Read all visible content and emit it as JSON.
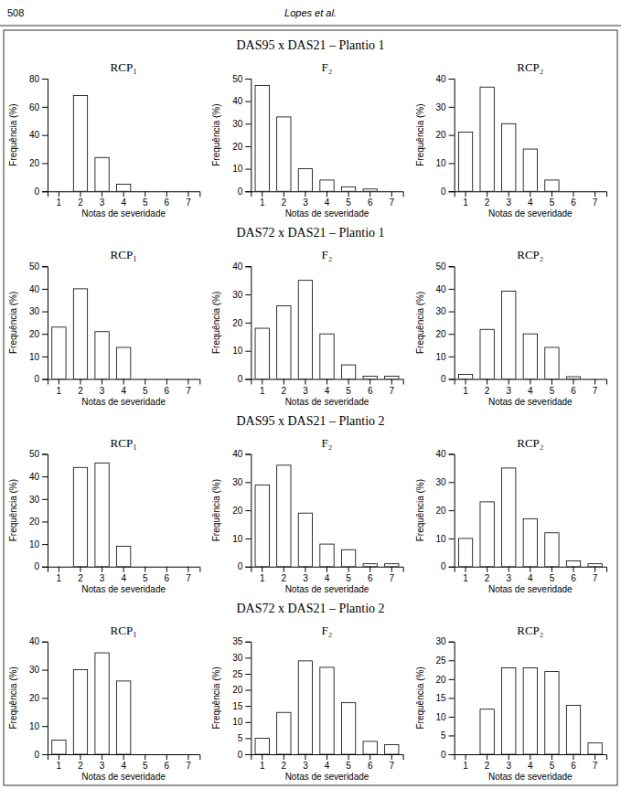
{
  "chart_data": [
    {
      "type": "bar",
      "title": "DAS95 x DAS21 – Plantio 1",
      "subtitle": "RCP₁",
      "annotations": [
        "508",
        "Lopes  et al."
      ],
      "xlabel": "Notas de severidade",
      "ylabel": "Frequência (%)",
      "categories": [
        1,
        2,
        3,
        4,
        5,
        6,
        7
      ],
      "values": [
        0,
        68,
        24,
        5,
        0,
        0,
        0
      ],
      "ylim": [
        0,
        80
      ],
      "yticks": [
        0,
        20,
        40,
        60,
        80
      ],
      "color": "white"
    },
    {
      "type": "bar",
      "subtitle": "F₂",
      "xlabel": "Notas de severidade",
      "ylabel": "Frequência (%)",
      "categories": [
        1,
        2,
        3,
        4,
        5,
        6,
        7
      ],
      "values": [
        47,
        33,
        10,
        5,
        2,
        1,
        0
      ],
      "ylim": [
        0,
        50
      ],
      "yticks": [
        0,
        10,
        20,
        30,
        40,
        50
      ],
      "color": "white"
    },
    {
      "type": "bar",
      "subtitle": "RCP₂",
      "xlabel": "Notas de severidade",
      "ylabel": "Frequência (%)",
      "categories": [
        1,
        2,
        3,
        4,
        5,
        6,
        7
      ],
      "values": [
        21,
        37,
        24,
        15,
        4,
        0,
        0
      ],
      "ylim": [
        0,
        40
      ],
      "yticks": [
        0,
        10,
        20,
        30,
        40
      ],
      "color": "white"
    },
    {
      "type": "bar",
      "title": "DAS72 x DAS21 – Plantio 1",
      "subtitle": "RCP₁",
      "xlabel": "Notas de severidade",
      "ylabel": "Frequência (%)",
      "categories": [
        1,
        2,
        3,
        4,
        5,
        6,
        7
      ],
      "values": [
        23,
        40,
        21,
        14,
        0,
        0,
        0
      ],
      "ylim": [
        0,
        50
      ],
      "yticks": [
        0,
        10,
        20,
        30,
        40,
        50
      ],
      "color": "white"
    },
    {
      "type": "bar",
      "subtitle": "F₂",
      "xlabel": "Notas de severidade",
      "ylabel": "Frequência (%)",
      "categories": [
        1,
        2,
        3,
        4,
        5,
        6,
        7
      ],
      "values": [
        18,
        26,
        35,
        16,
        5,
        1,
        1
      ],
      "ylim": [
        0,
        40
      ],
      "yticks": [
        0,
        10,
        20,
        30,
        40
      ],
      "color": "white"
    },
    {
      "type": "bar",
      "subtitle": "RCP₂",
      "xlabel": "Notas de severidade",
      "ylabel": "Frequência (%)",
      "categories": [
        1,
        2,
        3,
        4,
        5,
        6,
        7
      ],
      "values": [
        2,
        22,
        39,
        20,
        14,
        1,
        0
      ],
      "ylim": [
        0,
        50
      ],
      "yticks": [
        0,
        10,
        20,
        30,
        40,
        50
      ],
      "color": "white"
    },
    {
      "type": "bar",
      "title": "DAS95 x DAS21 – Plantio 2",
      "subtitle": "RCP₁",
      "xlabel": "Notas de severidade",
      "ylabel": "Frequência (%)",
      "categories": [
        1,
        2,
        3,
        4,
        5,
        6,
        7
      ],
      "values": [
        0,
        44,
        46,
        9,
        0,
        0,
        0
      ],
      "ylim": [
        0,
        50
      ],
      "yticks": [
        0,
        10,
        20,
        30,
        40,
        50
      ],
      "color": "white"
    },
    {
      "type": "bar",
      "subtitle": "F₂",
      "xlabel": "Notas de severidade",
      "ylabel": "Frequência (%)",
      "categories": [
        1,
        2,
        3,
        4,
        5,
        6,
        7
      ],
      "values": [
        29,
        36,
        19,
        8,
        6,
        1,
        1
      ],
      "ylim": [
        0,
        40
      ],
      "yticks": [
        0,
        10,
        20,
        30,
        40
      ],
      "color": "white"
    },
    {
      "type": "bar",
      "subtitle": "RCP₂",
      "xlabel": "Notas de severidade",
      "ylabel": "Frequência (%)",
      "categories": [
        1,
        2,
        3,
        4,
        5,
        6,
        7
      ],
      "values": [
        10,
        23,
        35,
        17,
        12,
        2,
        1
      ],
      "ylim": [
        0,
        40
      ],
      "yticks": [
        0,
        10,
        20,
        30,
        40
      ],
      "color": "white"
    },
    {
      "type": "bar",
      "title": "DAS72 x DAS21 – Plantio 2",
      "subtitle": "RCP₁",
      "xlabel": "Notas de severidade",
      "ylabel": "Frequência (%)",
      "categories": [
        1,
        2,
        3,
        4,
        5,
        6,
        7
      ],
      "values": [
        5,
        30,
        36,
        26,
        0,
        0,
        0
      ],
      "ylim": [
        0,
        40
      ],
      "yticks": [
        0,
        10,
        20,
        30,
        40
      ],
      "color": "white"
    },
    {
      "type": "bar",
      "subtitle": "F₂",
      "xlabel": "Notas de severidade",
      "ylabel": "Frequência (%)",
      "categories": [
        1,
        2,
        3,
        4,
        5,
        6,
        7
      ],
      "values": [
        5,
        13,
        29,
        27,
        16,
        4,
        3
      ],
      "ylim": [
        0,
        35
      ],
      "yticks": [
        0,
        5,
        10,
        15,
        20,
        25,
        30,
        35
      ],
      "color": "white"
    },
    {
      "type": "bar",
      "subtitle": "RCP₂",
      "xlabel": "Notas de severidade",
      "ylabel": "Frequência (%)",
      "categories": [
        1,
        2,
        3,
        4,
        5,
        6,
        7
      ],
      "values": [
        0,
        12,
        23,
        23,
        22,
        13,
        3
      ],
      "ylim": [
        0,
        30
      ],
      "yticks": [
        0,
        5,
        10,
        15,
        20,
        25,
        30
      ],
      "color": "white"
    }
  ]
}
